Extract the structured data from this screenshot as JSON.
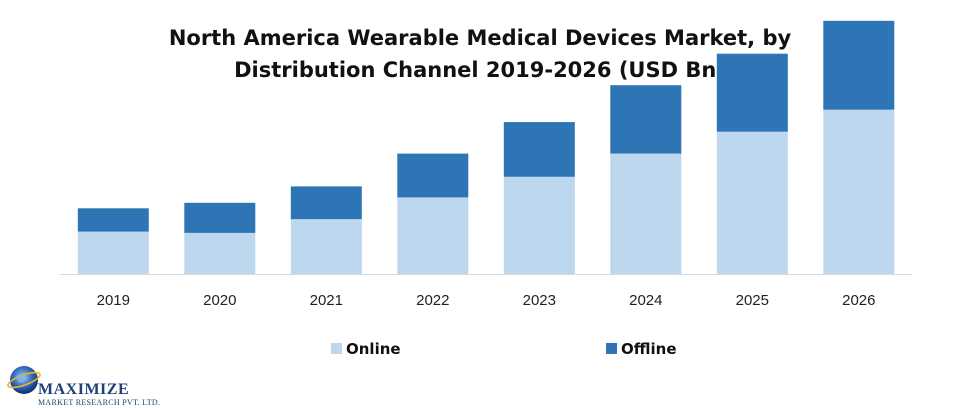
{
  "title_line1": "North America Wearable Medical Devices Market, by",
  "title_line2": "Distribution Channel  2019-2026 (USD Bn)",
  "logo": {
    "name": "MAXIMIZE",
    "subtitle": "MARKET RESEARCH PVT. LTD."
  },
  "colors": {
    "online": "#bdd7ee",
    "offline": "#2e75b6",
    "axis": "#d9d9d9"
  },
  "chart_data": {
    "type": "bar",
    "stacked": true,
    "categories": [
      "2019",
      "2020",
      "2021",
      "2022",
      "2023",
      "2024",
      "2025",
      "2026"
    ],
    "series": [
      {
        "name": "Online",
        "values": [
          3.1,
          3.0,
          4.0,
          5.6,
          7.1,
          8.8,
          10.4,
          12.0
        ]
      },
      {
        "name": "Offline",
        "values": [
          1.7,
          2.2,
          2.4,
          3.2,
          4.0,
          5.0,
          5.7,
          6.5
        ]
      }
    ],
    "ylim": [
      0,
      19
    ],
    "grid": false,
    "legend_position": "bottom",
    "xlabel": "",
    "ylabel": ""
  }
}
